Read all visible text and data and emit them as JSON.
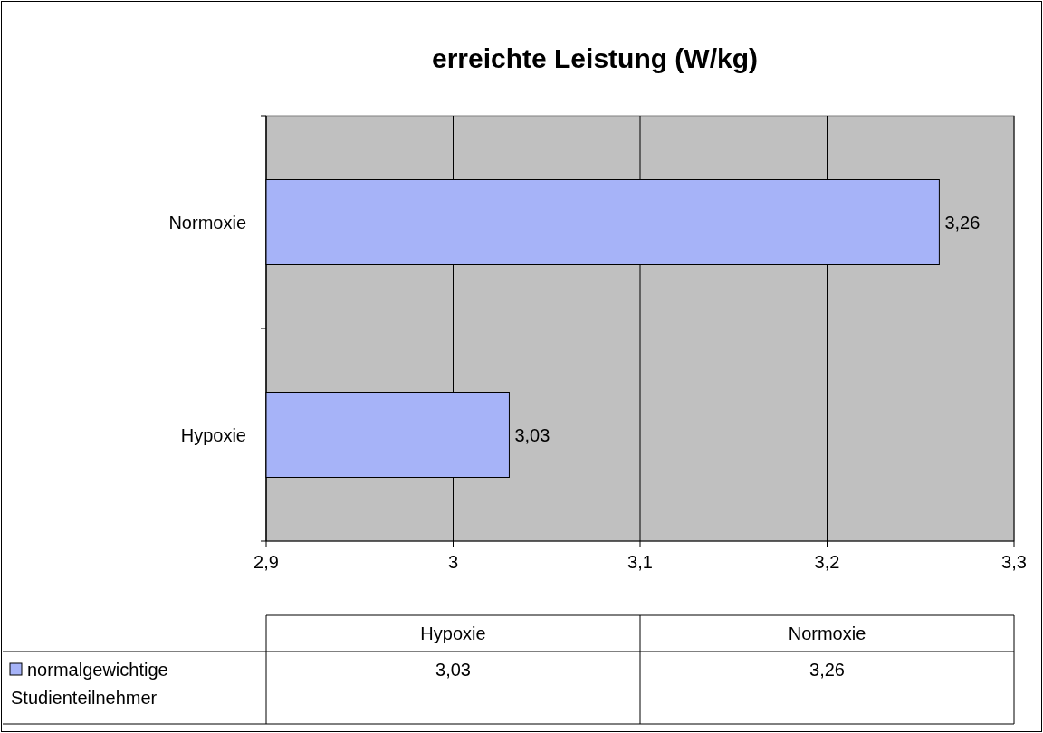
{
  "chart_data": {
    "type": "bar",
    "orientation": "horizontal",
    "title": "erreichte Leistung (W/kg)",
    "categories": [
      "Normoxie",
      "Hypoxie"
    ],
    "series": [
      {
        "name": "normalgewichtige Studienteilnehmer",
        "color": "#a6b3f8",
        "values": [
          3.26,
          3.03
        ],
        "value_labels": [
          "3,26",
          "3,03"
        ]
      }
    ],
    "xlim": [
      2.9,
      3.3
    ],
    "xticks": [
      {
        "value": 2.9,
        "label": "2,9"
      },
      3,
      {
        "value": 3.1,
        "label": "3,1"
      },
      {
        "value": 3.2,
        "label": "3,2"
      },
      {
        "value": 3.3,
        "label": "3,3"
      }
    ],
    "grid": "x",
    "legend": "bottom",
    "data_labels": true
  }
}
